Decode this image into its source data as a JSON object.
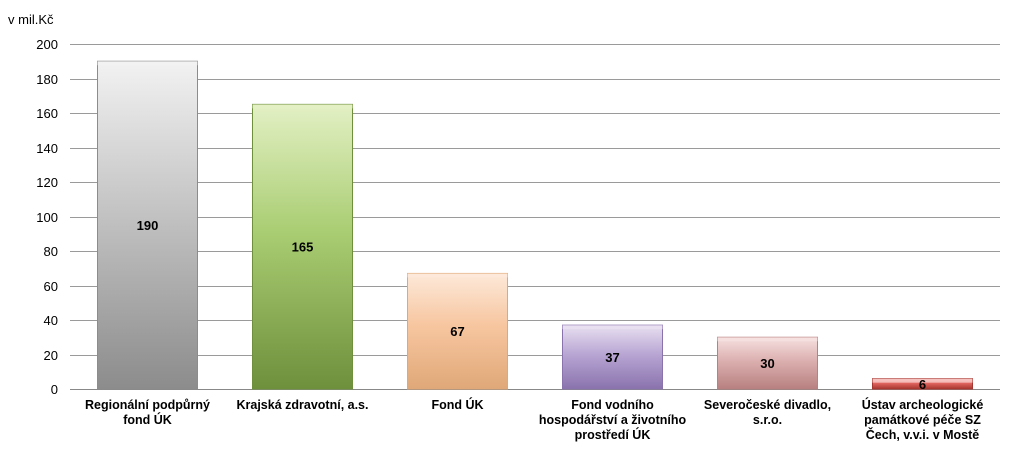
{
  "chart_data": {
    "type": "bar",
    "unit_label": "v mil.Kč",
    "ylim": [
      0,
      200
    ],
    "yticks": [
      0,
      20,
      40,
      60,
      80,
      100,
      120,
      140,
      160,
      180,
      200
    ],
    "grid": true,
    "categories": [
      [
        "Regionální podpůrný",
        "fond ÚK"
      ],
      [
        "Krajská zdravotní, a.s."
      ],
      [
        "Fond ÚK"
      ],
      [
        "Fond vodního",
        "hospodářství a životního",
        "prostředí ÚK"
      ],
      [
        "Severočeské divadlo,",
        "s.r.o."
      ],
      [
        "Ústav archeologické",
        "památkové péče SZ",
        "Čech, v.v.i. v Mostě"
      ]
    ],
    "values": [
      190,
      165,
      67,
      37,
      30,
      6
    ],
    "value_labels": [
      "190",
      "165",
      "67",
      "37",
      "30",
      "6"
    ],
    "colors": [
      [
        "#f2f2f2",
        "#c4c4c4",
        "#8c8c8c"
      ],
      [
        "#e3f0c4",
        "#a9cd72",
        "#6e8f3c"
      ],
      [
        "#fde9d9",
        "#f7c6a0",
        "#e0a878"
      ],
      [
        "#e8e0f0",
        "#b9a6d4",
        "#8a73ad"
      ],
      [
        "#f6e0e0",
        "#dcb0b0",
        "#b88080"
      ],
      [
        "#f7c9c7",
        "#e0645f",
        "#a63530"
      ]
    ]
  }
}
